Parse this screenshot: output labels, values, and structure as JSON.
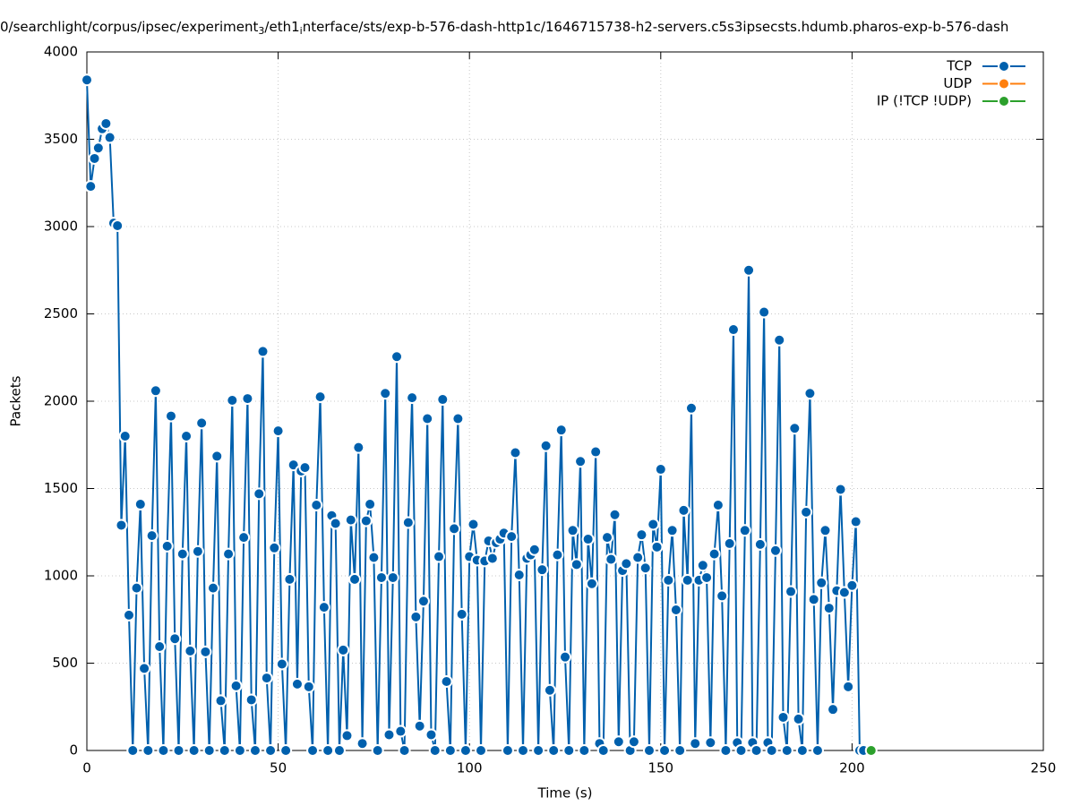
{
  "chart_data": {
    "type": "line",
    "title": [
      "0/searchlight/corpus/ipsec/experiment",
      "3",
      "/eth1",
      "i",
      "nterface/sts/exp-b-576-dash-http1c/1646715738-h2-servers.c5s3ipsecsts.hdumb.pharos-exp-b-576-dash"
    ],
    "x_label": "Time (s)",
    "y_label": "Packets",
    "xlim": [
      0,
      250
    ],
    "ylim": [
      0,
      4000
    ],
    "xticks": [
      0,
      50,
      100,
      150,
      200,
      250
    ],
    "yticks": [
      0,
      500,
      1000,
      1500,
      2000,
      2500,
      3000,
      3500,
      4000
    ],
    "grid": true,
    "legend": "top-right",
    "series": [
      {
        "name": "TCP",
        "color": "#0060ad",
        "x": [
          0,
          1,
          2,
          3,
          4,
          5,
          6,
          7,
          8,
          9,
          10,
          11,
          12,
          13,
          14,
          15,
          16,
          17,
          18,
          19,
          20,
          21,
          22,
          23,
          24,
          25,
          26,
          27,
          28,
          29,
          30,
          31,
          32,
          33,
          34,
          35,
          36,
          37,
          38,
          39,
          40,
          41,
          42,
          43,
          44,
          45,
          46,
          47,
          48,
          49,
          50,
          51,
          52,
          53,
          54,
          55,
          56,
          57,
          58,
          59,
          60,
          61,
          62,
          63,
          64,
          65,
          66,
          67,
          68,
          69,
          70,
          71,
          72,
          73,
          74,
          75,
          76,
          77,
          78,
          79,
          80,
          81,
          82,
          83,
          84,
          85,
          86,
          87,
          88,
          89,
          90,
          91,
          92,
          93,
          94,
          95,
          96,
          97,
          98,
          99,
          100,
          101,
          102,
          103,
          104,
          105,
          106,
          107,
          108,
          109,
          110,
          111,
          112,
          113,
          114,
          115,
          116,
          117,
          118,
          119,
          120,
          121,
          122,
          123,
          124,
          125,
          126,
          127,
          128,
          129,
          130,
          131,
          132,
          133,
          134,
          135,
          136,
          137,
          138,
          139,
          140,
          141,
          142,
          143,
          144,
          145,
          146,
          147,
          148,
          149,
          150,
          151,
          152,
          153,
          154,
          155,
          156,
          157,
          158,
          159,
          160,
          161,
          162,
          163,
          164,
          165,
          166,
          167,
          168,
          169,
          170,
          171,
          172,
          173,
          174,
          175,
          176,
          177,
          178,
          179,
          180,
          181,
          182,
          183,
          184,
          185,
          186,
          187,
          188,
          189,
          190,
          191,
          192,
          193,
          194,
          195,
          196,
          197,
          198,
          199,
          200,
          201,
          202,
          203
        ],
        "values": [
          3840,
          3230,
          3390,
          3450,
          3560,
          3590,
          3510,
          3020,
          3005,
          1290,
          1800,
          775,
          0,
          930,
          1410,
          470,
          0,
          1230,
          2060,
          595,
          0,
          1170,
          1915,
          640,
          0,
          1125,
          1800,
          570,
          0,
          1140,
          1875,
          565,
          0,
          930,
          1685,
          285,
          0,
          1125,
          2005,
          370,
          0,
          1220,
          2015,
          290,
          0,
          1470,
          2285,
          415,
          0,
          1160,
          1830,
          495,
          0,
          980,
          1635,
          380,
          1600,
          1620,
          365,
          0,
          1405,
          2025,
          820,
          0,
          1345,
          1300,
          0,
          575,
          85,
          1320,
          980,
          1735,
          40,
          1315,
          1410,
          1105,
          0,
          990,
          2045,
          90,
          990,
          2255,
          110,
          0,
          1305,
          2020,
          765,
          140,
          855,
          1900,
          90,
          0,
          1110,
          2010,
          395,
          0,
          1270,
          1900,
          780,
          0,
          1110,
          1295,
          1090,
          0,
          1085,
          1200,
          1100,
          1190,
          1210,
          1245,
          0,
          1225,
          1705,
          1005,
          0,
          1100,
          1120,
          1150,
          0,
          1035,
          1745,
          345,
          0,
          1120,
          1835,
          535,
          0,
          1260,
          1065,
          1655,
          0,
          1210,
          955,
          1710,
          40,
          0,
          1220,
          1095,
          1350,
          50,
          1030,
          1070,
          0,
          50,
          1105,
          1235,
          1045,
          0,
          1295,
          1165,
          1610,
          0,
          975,
          1260,
          805,
          0,
          1375,
          975,
          1960,
          40,
          975,
          1060,
          990,
          45,
          1125,
          1405,
          885,
          0,
          1185,
          2410,
          45,
          0,
          1260,
          2750,
          45,
          0,
          1180,
          2510,
          45,
          0,
          1145,
          2350,
          190,
          0,
          910,
          1845,
          180,
          0,
          1365,
          2045,
          865,
          0,
          960,
          1260,
          815,
          235,
          915,
          1495,
          905,
          365,
          945,
          1310,
          0,
          0
        ]
      },
      {
        "name": "UDP",
        "color": "#ff7f0e",
        "x": [],
        "values": []
      },
      {
        "name": "IP (!TCP  !UDP)",
        "color": "#2ca02c",
        "x": [
          205
        ],
        "values": [
          0
        ]
      }
    ]
  }
}
